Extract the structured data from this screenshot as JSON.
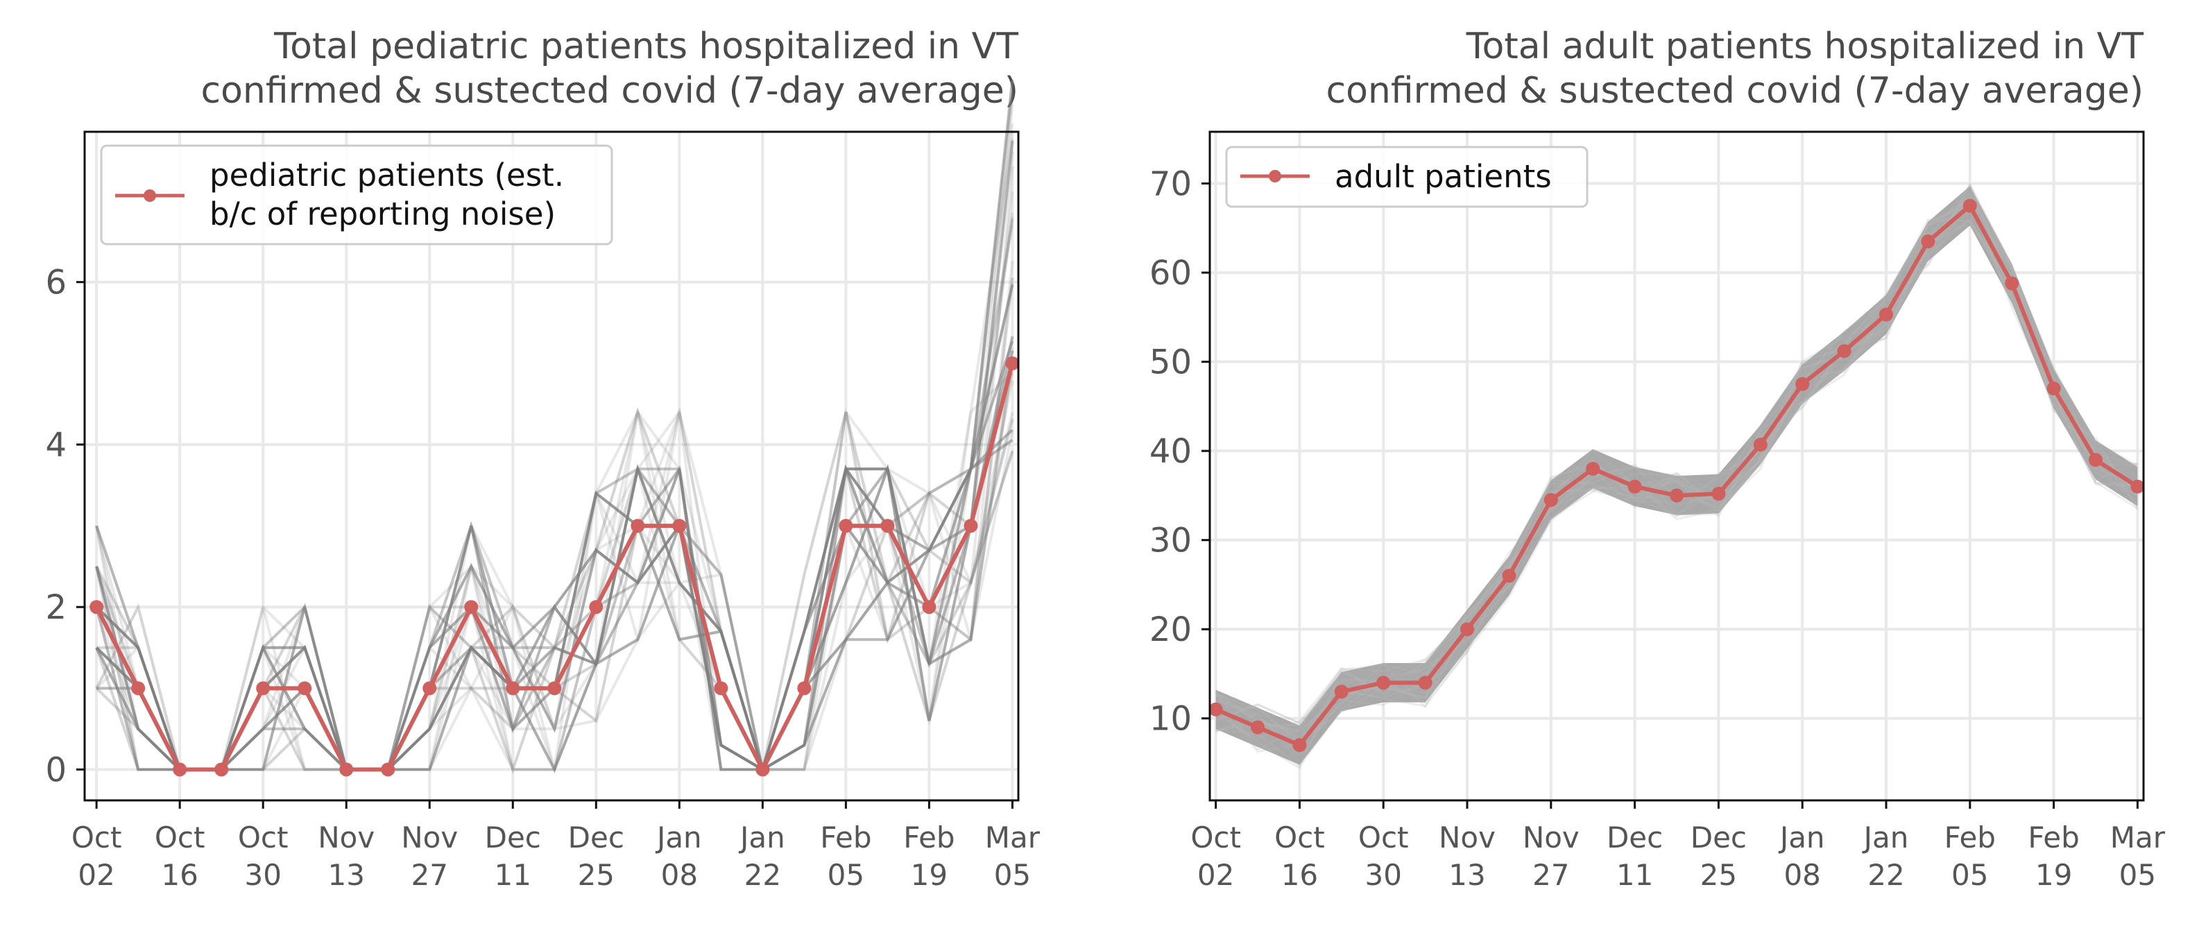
{
  "chart_data": [
    {
      "type": "line",
      "title": "Total pediatric patients hospitalized in VT",
      "subtitle": "confirmed & sustected covid (7-day average)",
      "x_tick_labels": [
        [
          "Oct",
          "02"
        ],
        [
          "Oct",
          "16"
        ],
        [
          "Oct",
          "30"
        ],
        [
          "Nov",
          "13"
        ],
        [
          "Nov",
          "27"
        ],
        [
          "Dec",
          "11"
        ],
        [
          "Dec",
          "25"
        ],
        [
          "Jan",
          "08"
        ],
        [
          "Jan",
          "22"
        ],
        [
          "Feb",
          "05"
        ],
        [
          "Feb",
          "19"
        ],
        [
          "Mar",
          "05"
        ]
      ],
      "x_tick_values": [
        0,
        14,
        28,
        42,
        56,
        70,
        84,
        98,
        112,
        126,
        140,
        154
      ],
      "y_ticks": [
        "0",
        "2",
        "4",
        "6"
      ],
      "y_tick_values": [
        0,
        2,
        4,
        6
      ],
      "ylim": [
        -0.38,
        7.85
      ],
      "xlim": [
        -2,
        155
      ],
      "grid": true,
      "legend_position": "top-left",
      "series": [
        {
          "name": "pediatric patients (est. b/c of reporting noise)",
          "legend_lines": [
            "pediatric patients (est.",
            "b/c of reporting noise)"
          ],
          "color": "#d0605e",
          "x": [
            0,
            7,
            14,
            21,
            28,
            35,
            42,
            49,
            56,
            63,
            70,
            77,
            84,
            91,
            98,
            105,
            112,
            119,
            126,
            133,
            140,
            147,
            154
          ],
          "values": [
            2,
            1,
            0,
            0,
            1,
            1,
            0,
            0,
            1,
            2,
            1,
            1,
            2,
            3,
            3,
            1,
            0,
            1,
            3,
            3,
            2,
            3,
            5
          ]
        }
      ],
      "uncertainty_color": "#808080"
    },
    {
      "type": "line",
      "title": "Total adult patients hospitalized in VT",
      "subtitle": "confirmed & sustected covid (7-day average)",
      "x_tick_labels": [
        [
          "Oct",
          "02"
        ],
        [
          "Oct",
          "16"
        ],
        [
          "Oct",
          "30"
        ],
        [
          "Nov",
          "13"
        ],
        [
          "Nov",
          "27"
        ],
        [
          "Dec",
          "11"
        ],
        [
          "Dec",
          "25"
        ],
        [
          "Jan",
          "08"
        ],
        [
          "Jan",
          "22"
        ],
        [
          "Feb",
          "05"
        ],
        [
          "Feb",
          "19"
        ],
        [
          "Mar",
          "05"
        ]
      ],
      "x_tick_values": [
        0,
        14,
        28,
        42,
        56,
        70,
        84,
        98,
        112,
        126,
        140,
        154
      ],
      "y_ticks": [
        "10",
        "20",
        "30",
        "40",
        "50",
        "60",
        "70"
      ],
      "y_tick_values": [
        10,
        20,
        30,
        40,
        50,
        60,
        70
      ],
      "ylim": [
        0.8,
        75.8
      ],
      "xlim": [
        -1,
        155
      ],
      "grid": true,
      "legend_position": "top-left",
      "series": [
        {
          "name": "adult patients",
          "legend_lines": [
            "adult patients"
          ],
          "color": "#d0605e",
          "x": [
            0,
            7,
            14,
            21,
            28,
            35,
            42,
            49,
            56,
            63,
            70,
            77,
            84,
            91,
            98,
            105,
            112,
            119,
            126,
            133,
            140,
            147,
            154
          ],
          "values": [
            11,
            9,
            7,
            13,
            14,
            14,
            20,
            26,
            34.5,
            38,
            36,
            35,
            35.2,
            40.7,
            47.5,
            51.2,
            55.3,
            63.5,
            67.5,
            58.8,
            47,
            39,
            36
          ]
        }
      ],
      "uncertainty_color": "#9a9a9a"
    }
  ]
}
